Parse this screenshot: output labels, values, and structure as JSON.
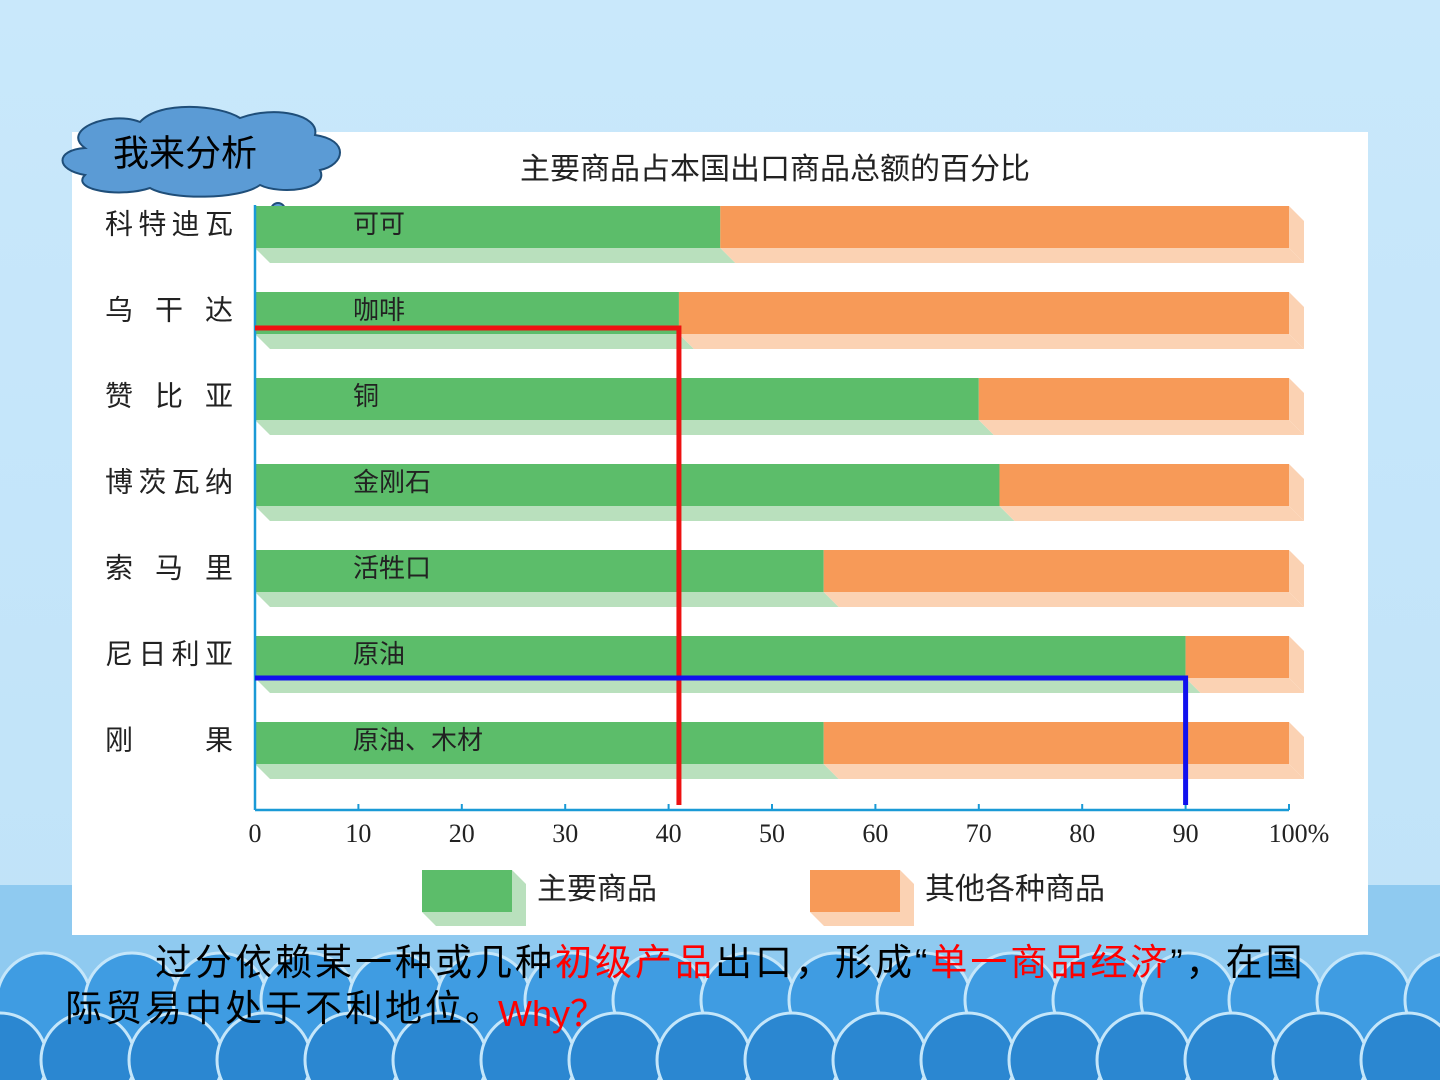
{
  "slide": {
    "callout": "我来分析",
    "caption_parts": [
      {
        "text": "过分依赖某一种或几种",
        "color": "#000000"
      },
      {
        "text": "初级产品",
        "color": "#ff0000"
      },
      {
        "text": "出口，形成“",
        "color": "#000000"
      },
      {
        "text": "单一商品经济",
        "color": "#ff0000"
      },
      {
        "text": "”，在国际贸易中处于不利地位。",
        "color": "#000000"
      }
    ],
    "question": "Why？"
  },
  "chart_data": {
    "type": "stacked-barh",
    "title": "主要商品占本国出口商品总额的百分比",
    "categories": [
      "科特迪瓦",
      "乌干达",
      "赞比亚",
      "博茨瓦纳",
      "索马里",
      "尼日利亚",
      "刚果"
    ],
    "products": [
      "可可",
      "咖啡",
      "铜",
      "金刚石",
      "活牲口",
      "原油",
      "原油、木材"
    ],
    "series": [
      {
        "name": "主要商品",
        "color": "#5cbd6a",
        "values": [
          45,
          41,
          70,
          72,
          55,
          90,
          55
        ]
      },
      {
        "name": "其他各种商品",
        "color": "#f79a58",
        "values": [
          55,
          59,
          30,
          28,
          45,
          10,
          45
        ]
      }
    ],
    "xlim": [
      0,
      100
    ],
    "xticks": [
      0,
      10,
      20,
      30,
      40,
      50,
      60,
      70,
      80,
      90,
      {
        "value": 100,
        "label": "100%"
      }
    ],
    "highlights": [
      {
        "series": 0,
        "index": 1,
        "color": "#ee1111"
      },
      {
        "series": 0,
        "index": 5,
        "color": "#1111ee"
      }
    ]
  }
}
